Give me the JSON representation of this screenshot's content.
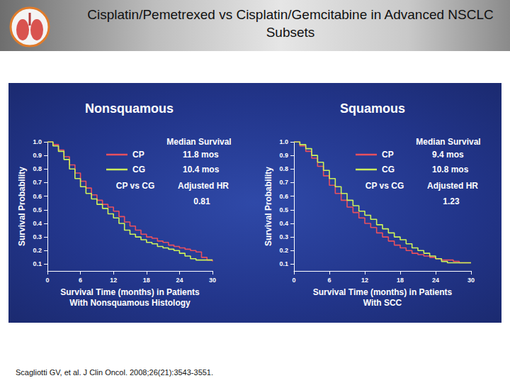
{
  "title": "Cisplatin/Pemetrexed vs Cisplatin/Gemcitabine in Advanced NSCLC Subsets",
  "source": "Scagliotti GV, et al. J Clin Oncol. 2008;26(21):3543-3551.",
  "chart_data": [
    {
      "type": "step",
      "title": "Nonsquamous",
      "xlabel": "Survival Time (months) in Patients\nWith Nonsquamous Histology",
      "ylabel": "Survival Probability",
      "xlim": [
        0,
        30
      ],
      "xticks": [
        0,
        6,
        12,
        18,
        24,
        30
      ],
      "ylim": [
        0.05,
        1
      ],
      "yticks": [
        0.1,
        0.2,
        0.3,
        0.4,
        0.5,
        0.6,
        0.7,
        0.8,
        0.9,
        {
          "value": 1,
          "label": "1.0"
        }
      ],
      "grid": false,
      "x": [
        0,
        1,
        2,
        3,
        4,
        5,
        6,
        7,
        8,
        9,
        10,
        11,
        12,
        13,
        14,
        15,
        16,
        17,
        18,
        19,
        20,
        21,
        22,
        23,
        24,
        25,
        26,
        27,
        28,
        29,
        30
      ],
      "series": [
        {
          "name": "CP",
          "color": "#e8505e",
          "values": [
            1,
            0.98,
            0.94,
            0.89,
            0.83,
            0.77,
            0.71,
            0.66,
            0.61,
            0.57,
            0.54,
            0.52,
            0.49,
            0.45,
            0.41,
            0.38,
            0.35,
            0.32,
            0.3,
            0.29,
            0.27,
            0.26,
            0.24,
            0.23,
            0.22,
            0.21,
            0.2,
            0.19,
            0.15,
            0.13,
            0.12
          ]
        },
        {
          "name": "CG",
          "color": "#ccf25a",
          "values": [
            1,
            0.97,
            0.93,
            0.87,
            0.8,
            0.73,
            0.67,
            0.62,
            0.58,
            0.54,
            0.51,
            0.47,
            0.44,
            0.4,
            0.35,
            0.32,
            0.3,
            0.28,
            0.26,
            0.25,
            0.23,
            0.22,
            0.21,
            0.2,
            0.18,
            0.16,
            0.14,
            0.13,
            0.13,
            0.13,
            0.13
          ]
        }
      ],
      "annotations": [
        "Median Survival",
        "11.8 mos",
        "10.4 mos",
        "CP vs CG",
        "Adjusted HR",
        "0.81"
      ]
    },
    {
      "type": "step",
      "title": "Squamous",
      "xlabel": "Survival Time (months) in Patients\nWith SCC",
      "ylabel": "Survival Probability",
      "xlim": [
        0,
        30
      ],
      "xticks": [
        0,
        6,
        12,
        18,
        24,
        30
      ],
      "ylim": [
        0.05,
        1
      ],
      "yticks": [
        0.1,
        0.2,
        0.3,
        0.4,
        0.5,
        0.6,
        0.7,
        0.8,
        0.9,
        {
          "value": 1,
          "label": "1.0"
        }
      ],
      "grid": false,
      "x": [
        0,
        1,
        2,
        3,
        4,
        5,
        6,
        7,
        8,
        9,
        10,
        11,
        12,
        13,
        14,
        15,
        16,
        17,
        18,
        19,
        20,
        21,
        22,
        23,
        24,
        25,
        26,
        27,
        28,
        29,
        30
      ],
      "series": [
        {
          "name": "CP",
          "color": "#e8505e",
          "values": [
            1,
            0.97,
            0.93,
            0.88,
            0.82,
            0.75,
            0.68,
            0.62,
            0.57,
            0.52,
            0.48,
            0.44,
            0.4,
            0.37,
            0.33,
            0.3,
            0.27,
            0.24,
            0.22,
            0.2,
            0.18,
            0.17,
            0.16,
            0.15,
            0.14,
            0.13,
            0.13,
            0.12,
            0.11,
            0.11,
            0.11
          ]
        },
        {
          "name": "CG",
          "color": "#ccf25a",
          "values": [
            1,
            0.98,
            0.95,
            0.9,
            0.85,
            0.79,
            0.73,
            0.67,
            0.62,
            0.57,
            0.53,
            0.49,
            0.46,
            0.43,
            0.39,
            0.36,
            0.33,
            0.3,
            0.28,
            0.25,
            0.22,
            0.2,
            0.18,
            0.16,
            0.14,
            0.12,
            0.11,
            0.11,
            0.11,
            0.11,
            0.11
          ]
        }
      ],
      "annotations": [
        "Median Survival",
        "9.4 mos",
        "10.8 mos",
        "CP vs CG",
        "Adjusted HR",
        "1.23"
      ]
    }
  ]
}
